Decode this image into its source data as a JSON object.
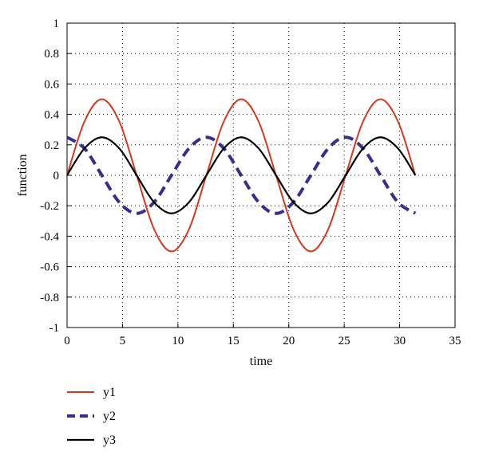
{
  "chart_data": {
    "type": "line",
    "title": "",
    "xlabel": "time",
    "ylabel": "function",
    "xlim": [
      0,
      35
    ],
    "ylim": [
      -1,
      1
    ],
    "xticks": [
      0,
      5,
      10,
      15,
      20,
      25,
      30,
      35
    ],
    "yticks": [
      -1,
      -0.8,
      -0.6,
      -0.4,
      -0.2,
      0,
      0.2,
      0.4,
      0.6,
      0.8,
      1
    ],
    "xtick_labels": [
      "0",
      "5",
      "10",
      "15",
      "20",
      "25",
      "30",
      "35"
    ],
    "ytick_labels": [
      "-1",
      "-0.8",
      "-0.6",
      "-0.4",
      "-0.2",
      "0",
      "0.2",
      "0.4",
      "0.6",
      "0.8",
      "1"
    ],
    "grid": "dotted",
    "legend_position": "below",
    "x": [
      0,
      1.57,
      3.14,
      4.71,
      6.28,
      7.85,
      9.42,
      11.0,
      12.57,
      14.14,
      15.71,
      17.28,
      18.85,
      20.42,
      21.99,
      23.56,
      25.13,
      26.7,
      28.27,
      29.85,
      31.42
    ],
    "series": [
      {
        "name": "y1",
        "color": "#d03a1e",
        "style": "solid",
        "values": [
          0,
          0.354,
          0.5,
          0.354,
          0,
          -0.354,
          -0.5,
          -0.354,
          0,
          0.354,
          0.5,
          0.354,
          0,
          -0.354,
          -0.5,
          -0.354,
          0,
          0.354,
          0.5,
          0.354,
          0
        ]
      },
      {
        "name": "y2",
        "color": "#3a2e8c",
        "style": "dashed",
        "values": [
          0.25,
          0.177,
          0,
          -0.177,
          -0.25,
          -0.177,
          0,
          0.177,
          0.25,
          0.177,
          0,
          -0.177,
          -0.25,
          -0.177,
          0,
          0.177,
          0.25,
          0.177,
          0,
          -0.177,
          -0.25
        ]
      },
      {
        "name": "y3",
        "color": "#000000",
        "style": "solid",
        "values": [
          0,
          0.177,
          0.25,
          0.177,
          0,
          -0.177,
          -0.25,
          -0.177,
          0,
          0.177,
          0.25,
          0.177,
          0,
          -0.177,
          -0.25,
          -0.177,
          0,
          0.177,
          0.25,
          0.177,
          0
        ]
      }
    ]
  }
}
